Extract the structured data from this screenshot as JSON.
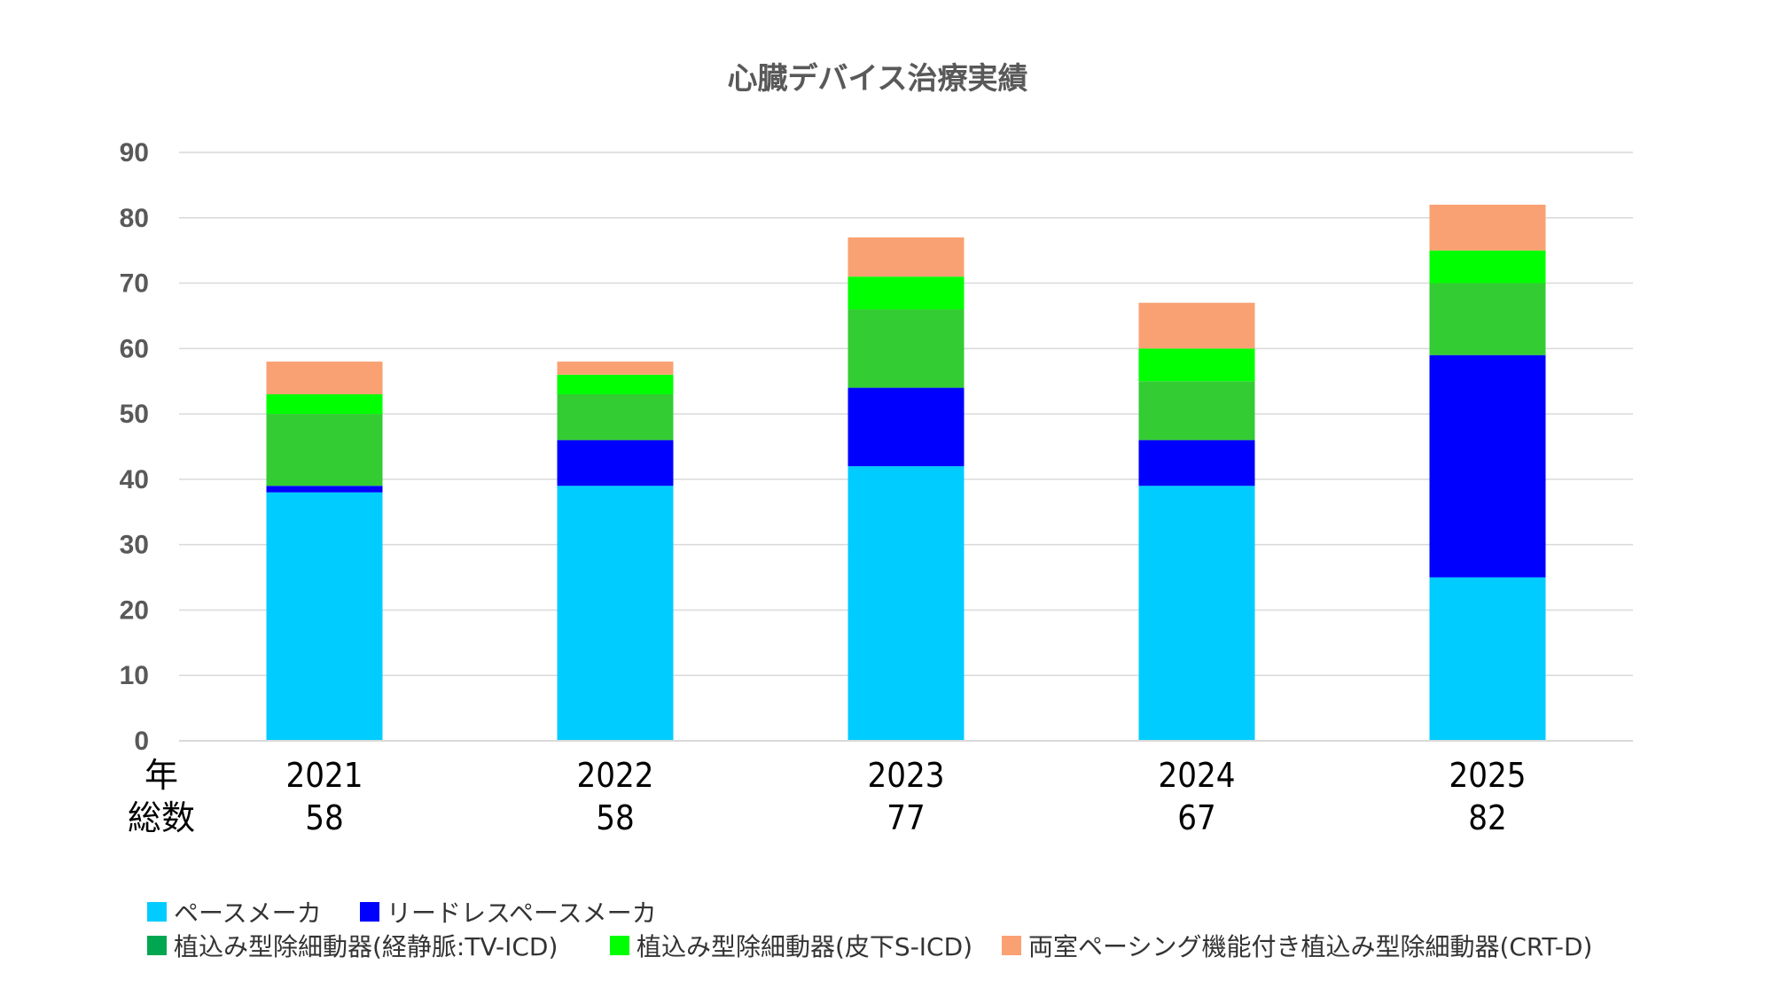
{
  "chart_data": {
    "type": "bar",
    "stacked": true,
    "title": "心臓デバイス治療実績",
    "categories": [
      "2021",
      "2022",
      "2023",
      "2024",
      "2025"
    ],
    "totals": [
      "58",
      "58",
      "77",
      "67",
      "82"
    ],
    "row_labels": {
      "year": "年",
      "total": "総数"
    },
    "yticks": [
      0,
      10,
      20,
      30,
      40,
      50,
      60,
      70,
      80,
      90
    ],
    "ylim": [
      0,
      90
    ],
    "grid": true,
    "legend_position": "bottom",
    "series": [
      {
        "name": "ペースメーカ",
        "color": "#00CCFF",
        "values": [
          38,
          39,
          42,
          39,
          25
        ]
      },
      {
        "name": "リードレスペースメーカ",
        "color": "#0000FF",
        "values": [
          1,
          7,
          12,
          7,
          34
        ]
      },
      {
        "name": "植込み型除細動器(経静脈:TV-ICD)",
        "color": "#33CC33",
        "legend_color": "#00A650",
        "values": [
          11,
          7,
          12,
          9,
          11
        ]
      },
      {
        "name": "植込み型除細動器(皮下S-ICD)",
        "color": "#00FF00",
        "values": [
          3,
          3,
          5,
          5,
          5
        ]
      },
      {
        "name": "両室ペーシング機能付き植込み型除細動器(CRT-D)",
        "color": "#F9A172",
        "values": [
          5,
          2,
          6,
          7,
          7
        ]
      }
    ]
  }
}
